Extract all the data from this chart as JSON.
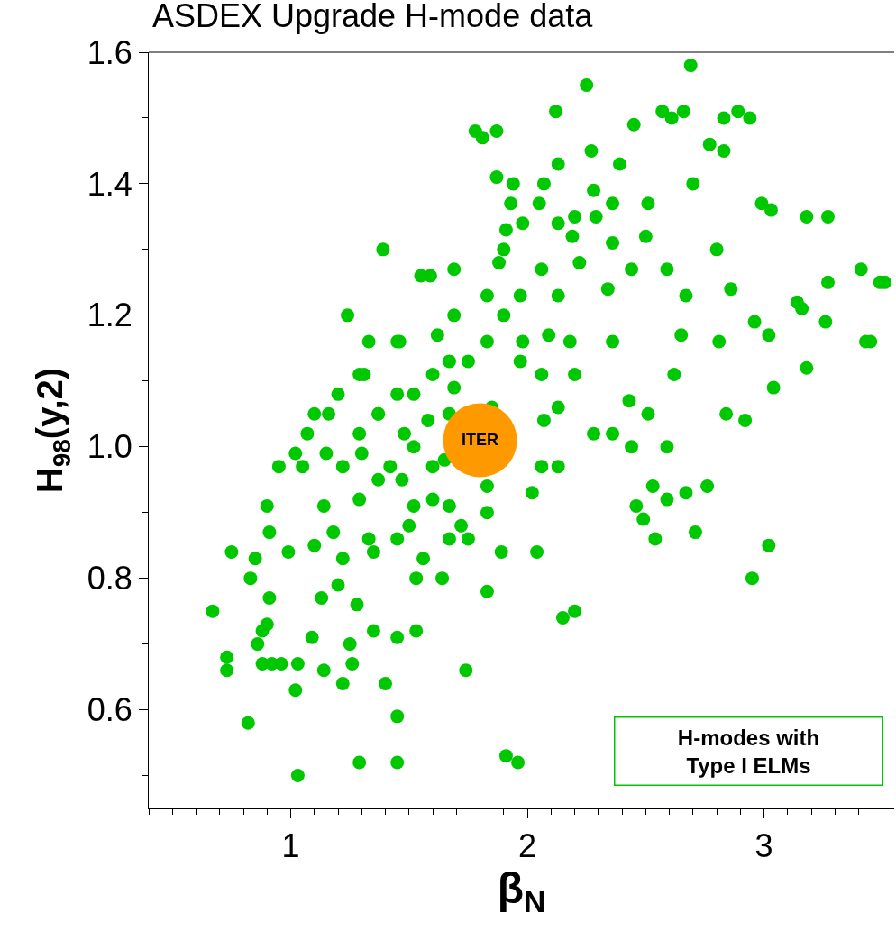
{
  "chart_data": {
    "type": "scatter",
    "title": "ASDEX Upgrade H-mode data",
    "xlabel": "β$_{N}$",
    "ylabel": "H$_{98}$(y,2)",
    "xlim": [
      0.4,
      3.55
    ],
    "xticks": [
      1,
      2,
      3
    ],
    "ylim": [
      0.45,
      1.6
    ],
    "yticks": [
      {
        "value": 0.6,
        "label": "0.6"
      },
      {
        "value": 0.8,
        "label": "0.8"
      },
      {
        "value": 1.0,
        "label": "1.0"
      },
      {
        "value": 1.2,
        "label": "1.2"
      },
      {
        "value": 1.4,
        "label": "1.4"
      },
      {
        "value": 1.6,
        "label": "1.6"
      }
    ],
    "legend": false,
    "marker": "circle",
    "annotations": [
      "H-modes with\nType I ELMs"
    ],
    "series": [
      {
        "color": "#00c800",
        "x": [
          0.67,
          0.73,
          0.73,
          0.75,
          0.82,
          0.83,
          0.85,
          0.86,
          0.88,
          0.9,
          0.9,
          0.91,
          0.91,
          0.88,
          0.92,
          0.96,
          0.95,
          0.99,
          1.02,
          1.03,
          1.03,
          1.02,
          1.05,
          1.09,
          1.07,
          1.1,
          1.13,
          1.14,
          1.15,
          1.16,
          1.18,
          1.2,
          1.2,
          1.22,
          1.22,
          1.24,
          1.25,
          1.26,
          1.28,
          1.29,
          1.29,
          1.3,
          1.31,
          1.33,
          1.33,
          1.35,
          1.35,
          1.37,
          1.39,
          1.4,
          1.42,
          1.45,
          1.45,
          1.45,
          1.46,
          1.47,
          1.48,
          1.5,
          1.53,
          1.53,
          1.55,
          1.56,
          1.58,
          1.59,
          1.6,
          1.62,
          1.64,
          1.65,
          1.67,
          1.69,
          1.69,
          1.69,
          1.72,
          1.74,
          1.75,
          1.78,
          1.81,
          1.83,
          1.83,
          1.85,
          1.87,
          1.87,
          1.89,
          1.91,
          1.96,
          1.88,
          1.91,
          1.93,
          1.94,
          1.97,
          1.97,
          2.02,
          2.04,
          2.05,
          2.07,
          2.07,
          2.09,
          2.12,
          2.13,
          2.15,
          2.18,
          2.2,
          2.19,
          2.22,
          2.25,
          2.27,
          2.29,
          2.34,
          2.36,
          2.39,
          2.43,
          2.45,
          2.46,
          2.49,
          2.5,
          2.53,
          2.54,
          2.57,
          2.59,
          2.61,
          2.59,
          2.62,
          2.65,
          2.67,
          2.66,
          2.69,
          2.71,
          2.7,
          2.76,
          2.77,
          2.8,
          2.83,
          2.84,
          2.81,
          2.83,
          2.86,
          2.89,
          2.92,
          2.94,
          2.95,
          2.96,
          2.99,
          3.02,
          3.02,
          3.04,
          3.03,
          3.18,
          3.16,
          3.14,
          3.18,
          3.27,
          3.26,
          3.27,
          3.41,
          3.43,
          3.45,
          3.49,
          3.51,
          1.37,
          1.45,
          1.52,
          1.6,
          1.67,
          1.75,
          1.83,
          1.9,
          1.98,
          2.06,
          2.13,
          2.2,
          2.28,
          2.36,
          2.44,
          2.51,
          2.13,
          2.06,
          2.13,
          2.2,
          2.28,
          2.06,
          1.67,
          1.6,
          1.52,
          1.45,
          1.37,
          1.29,
          1.22,
          1.14,
          1.1,
          1.29,
          1.45,
          1.52,
          1.67,
          1.83,
          2.13,
          2.36,
          2.44,
          2.59,
          2.67,
          2.51,
          2.36,
          1.98,
          1.9,
          1.83
        ],
        "values": [
          0.75,
          0.68,
          0.66,
          0.84,
          0.58,
          0.8,
          0.83,
          0.7,
          0.72,
          0.73,
          0.91,
          0.77,
          0.87,
          0.67,
          0.67,
          0.67,
          0.97,
          0.84,
          0.99,
          0.67,
          0.5,
          0.63,
          0.97,
          0.71,
          1.02,
          0.85,
          0.77,
          0.66,
          0.99,
          1.05,
          0.87,
          0.79,
          1.08,
          0.83,
          0.64,
          1.2,
          0.7,
          0.67,
          0.76,
          0.52,
          0.92,
          0.99,
          1.11,
          1.16,
          0.86,
          0.84,
          0.72,
          1.05,
          1.3,
          0.64,
          0.97,
          0.71,
          0.59,
          0.52,
          1.16,
          0.95,
          1.02,
          0.88,
          0.72,
          0.8,
          1.26,
          0.83,
          1.04,
          1.26,
          0.92,
          1.17,
          0.8,
          0.98,
          0.91,
          1.2,
          1.09,
          1.27,
          0.88,
          0.66,
          0.86,
          1.48,
          1.47,
          0.78,
          0.9,
          1.06,
          1.48,
          1.41,
          0.84,
          0.53,
          0.52,
          1.28,
          1.33,
          1.37,
          1.4,
          1.13,
          1.23,
          0.93,
          0.84,
          1.37,
          1.4,
          1.04,
          1.17,
          1.51,
          1.43,
          0.74,
          1.16,
          0.75,
          1.32,
          1.28,
          1.55,
          1.45,
          1.35,
          1.24,
          1.31,
          1.43,
          1.07,
          1.49,
          0.91,
          0.89,
          1.32,
          0.94,
          0.86,
          1.51,
          0.92,
          1.5,
          1.0,
          1.11,
          1.17,
          0.93,
          1.51,
          1.58,
          0.87,
          1.4,
          0.94,
          1.46,
          1.3,
          1.45,
          1.05,
          1.16,
          1.5,
          1.24,
          1.51,
          1.04,
          1.5,
          0.8,
          1.19,
          1.37,
          0.85,
          1.17,
          1.09,
          1.36,
          1.12,
          1.21,
          1.22,
          1.35,
          1.35,
          1.19,
          1.25,
          1.27,
          1.16,
          1.16,
          1.25,
          1.25,
          0.95,
          1.08,
          1.0,
          1.11,
          1.05,
          1.13,
          1.16,
          1.2,
          1.16,
          1.27,
          1.23,
          1.35,
          1.39,
          1.37,
          1.27,
          1.37,
          1.34,
          1.11,
          1.06,
          1.11,
          1.02,
          0.97,
          1.13,
          0.97,
          1.08,
          0.86,
          1.05,
          1.11,
          0.97,
          0.91,
          1.05,
          1.02,
          1.16,
          0.91,
          0.86,
          0.94,
          0.97,
          1.16,
          1.0,
          1.27,
          1.23,
          1.05,
          1.02,
          1.34,
          1.3,
          1.23
        ]
      },
      {
        "name": "ITER",
        "color": "#ff9900",
        "x": [
          1.8
        ],
        "values": [
          1.01
        ]
      }
    ]
  }
}
